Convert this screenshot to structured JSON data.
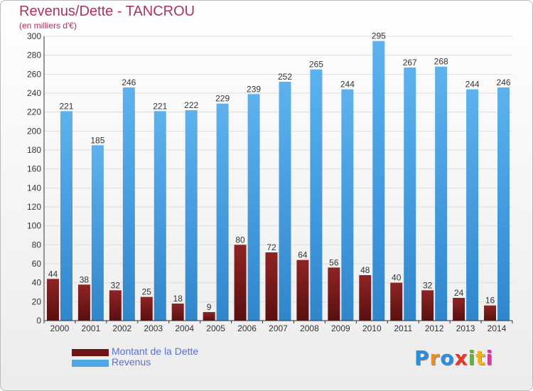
{
  "header": {
    "title": "Revenus/Dette - TANCROU",
    "subtitle": "(en milliers d'€)"
  },
  "legend": [
    {
      "name": "Montant de la Dette",
      "color": "#7a1a1a"
    },
    {
      "name": "Revenus",
      "color": "#4fa7e6"
    }
  ],
  "logo": {
    "text": "Proxiti",
    "letters": [
      {
        "char": "P",
        "color": "#2a8fd8"
      },
      {
        "char": "r",
        "color": "#f08a1c"
      },
      {
        "char": "o",
        "color": "#2a8fd8"
      },
      {
        "char": "x",
        "color": "#e03a2a"
      },
      {
        "char": "i",
        "color": "#5ab82e"
      },
      {
        "char": "t",
        "color": "#f0b41c"
      },
      {
        "char": "i",
        "color": "#d83a9a"
      }
    ]
  },
  "chart_data": {
    "type": "bar",
    "categories": [
      "2000",
      "2001",
      "2002",
      "2003",
      "2004",
      "2005",
      "2006",
      "2007",
      "2008",
      "2009",
      "2010",
      "2011",
      "2012",
      "2013",
      "2014"
    ],
    "series": [
      {
        "name": "Montant de la Dette",
        "color": "#7a1a1a",
        "values": [
          44,
          38,
          32,
          25,
          18,
          9,
          80,
          72,
          64,
          56,
          48,
          40,
          32,
          24,
          16
        ]
      },
      {
        "name": "Revenus",
        "color": "#4fa7e6",
        "values": [
          221,
          185,
          246,
          221,
          222,
          229,
          239,
          252,
          265,
          244,
          295,
          267,
          268,
          244,
          246
        ]
      }
    ],
    "title": "Revenus/Dette - TANCROU",
    "subtitle": "(en milliers d'€)",
    "ylim": [
      0,
      300
    ],
    "ytick_step": 20,
    "grid": true,
    "legend_position": "bottom-left"
  }
}
